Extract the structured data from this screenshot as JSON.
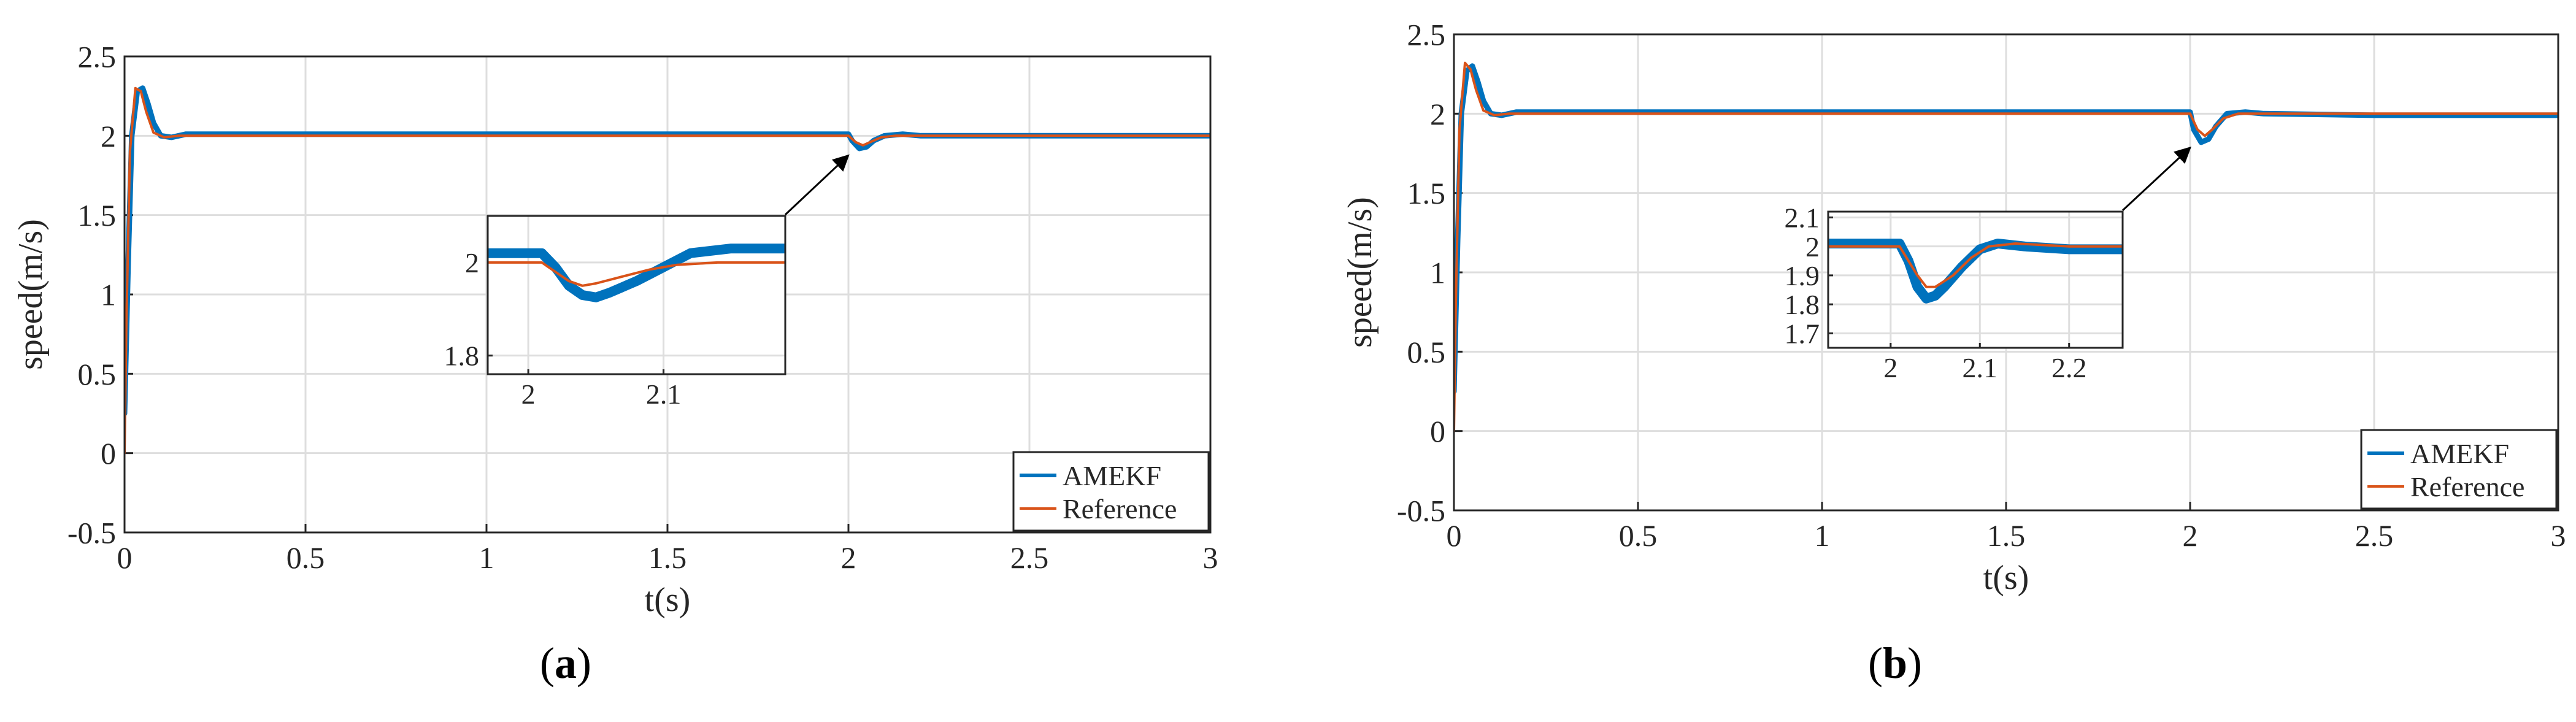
{
  "chart_data": [
    {
      "id": "a",
      "type": "line",
      "caption_letter": "a",
      "xlabel": "t(s)",
      "ylabel": "speed(m/s)",
      "xlim": [
        0,
        3
      ],
      "ylim": [
        -0.5,
        2.5
      ],
      "xticks": [
        0,
        0.5,
        1,
        1.5,
        2,
        2.5,
        3
      ],
      "xtick_labels": [
        "0",
        "0.5",
        "1",
        "1.5",
        "2",
        "2.5",
        "3"
      ],
      "yticks": [
        -0.5,
        0,
        0.5,
        1,
        1.5,
        2,
        2.5
      ],
      "ytick_labels": [
        "-0.5",
        "0",
        "0.5",
        "1",
        "1.5",
        "2",
        "2.5"
      ],
      "grid": true,
      "legend_position": "bottom-right",
      "series": [
        {
          "name": "AMEKF",
          "color": "#0072BD",
          "x": [
            0,
            0.01,
            0.02,
            0.035,
            0.05,
            0.065,
            0.08,
            0.1,
            0.13,
            0.17,
            0.22,
            0.5,
            1.0,
            1.5,
            2.0,
            2.01,
            2.03,
            2.05,
            2.07,
            2.1,
            2.15,
            2.2,
            2.5,
            3.0
          ],
          "y": [
            0.25,
            1.2,
            2.0,
            2.28,
            2.3,
            2.2,
            2.08,
            2.0,
            1.99,
            2.01,
            2.01,
            2.01,
            2.01,
            2.01,
            2.01,
            1.97,
            1.92,
            1.93,
            1.97,
            2.0,
            2.01,
            2.0,
            2.0,
            2.0
          ]
        },
        {
          "name": "Reference",
          "color": "#D95319",
          "x": [
            0,
            0.005,
            0.015,
            0.03,
            0.045,
            0.06,
            0.08,
            0.11,
            0.15,
            0.2,
            0.5,
            1.0,
            1.5,
            2.0,
            2.02,
            2.04,
            2.06,
            2.09,
            2.13,
            2.2,
            2.5,
            3.0
          ],
          "y": [
            0,
            0.8,
            1.9,
            2.3,
            2.28,
            2.15,
            2.02,
            1.99,
            2.0,
            2.0,
            2.0,
            2.0,
            2.0,
            2.0,
            1.96,
            1.94,
            1.96,
            1.99,
            2.0,
            2.0,
            2.0,
            2.0
          ]
        }
      ],
      "inset": {
        "xlim": [
          1.97,
          2.19
        ],
        "ylim": [
          1.76,
          2.1
        ],
        "xticks": [
          2,
          2.1
        ],
        "xtick_labels": [
          "2",
          "2.1"
        ],
        "yticks": [
          1.8,
          2
        ],
        "ytick_labels": [
          "1.8",
          "2"
        ],
        "target": {
          "x": 2.02,
          "y": 1.93
        },
        "series": [
          {
            "name": "AMEKF",
            "x": [
              1.97,
              2.0,
              2.01,
              2.02,
              2.03,
              2.04,
              2.05,
              2.06,
              2.08,
              2.1,
              2.12,
              2.15,
              2.19
            ],
            "y": [
              2.02,
              2.02,
              2.02,
              1.99,
              1.95,
              1.93,
              1.925,
              1.935,
              1.96,
              1.99,
              2.02,
              2.03,
              2.03
            ]
          },
          {
            "name": "Reference",
            "x": [
              1.97,
              2.0,
              2.01,
              2.02,
              2.03,
              2.04,
              2.05,
              2.07,
              2.09,
              2.11,
              2.14,
              2.19
            ],
            "y": [
              2.0,
              2.0,
              2.0,
              1.98,
              1.96,
              1.95,
              1.955,
              1.97,
              1.985,
              1.995,
              2.0,
              2.0
            ]
          }
        ]
      }
    },
    {
      "id": "b",
      "type": "line",
      "caption_letter": "b",
      "xlabel": "t(s)",
      "ylabel": "speed(m/s)",
      "xlim": [
        0,
        3
      ],
      "ylim": [
        -0.5,
        2.5
      ],
      "xticks": [
        0,
        0.5,
        1,
        1.5,
        2,
        2.5,
        3
      ],
      "xtick_labels": [
        "0",
        "0.5",
        "1",
        "1.5",
        "2",
        "2.5",
        "3"
      ],
      "yticks": [
        -0.5,
        0,
        0.5,
        1,
        1.5,
        2,
        2.5
      ],
      "ytick_labels": [
        "-0.5",
        "0",
        "0.5",
        "1",
        "1.5",
        "2",
        "2.5"
      ],
      "grid": true,
      "legend_position": "bottom-right",
      "series": [
        {
          "name": "AMEKF",
          "color": "#0072BD",
          "x": [
            0,
            0.01,
            0.02,
            0.035,
            0.05,
            0.065,
            0.08,
            0.1,
            0.13,
            0.17,
            0.22,
            0.5,
            1.0,
            1.5,
            2.0,
            2.01,
            2.03,
            2.05,
            2.07,
            2.1,
            2.15,
            2.2,
            2.5,
            3.0
          ],
          "y": [
            0.25,
            1.2,
            2.0,
            2.27,
            2.3,
            2.2,
            2.08,
            2.0,
            1.99,
            2.01,
            2.01,
            2.01,
            2.01,
            2.01,
            2.01,
            1.9,
            1.82,
            1.84,
            1.92,
            2.0,
            2.01,
            2.0,
            1.99,
            1.99
          ]
        },
        {
          "name": "Reference",
          "color": "#D95319",
          "x": [
            0,
            0.005,
            0.015,
            0.03,
            0.045,
            0.06,
            0.08,
            0.11,
            0.15,
            0.2,
            0.5,
            1.0,
            1.5,
            2.0,
            2.02,
            2.04,
            2.06,
            2.09,
            2.13,
            2.2,
            2.5,
            3.0
          ],
          "y": [
            0,
            0.8,
            1.9,
            2.32,
            2.28,
            2.15,
            2.02,
            1.99,
            2.0,
            2.0,
            2.0,
            2.0,
            2.0,
            2.0,
            1.9,
            1.86,
            1.9,
            1.97,
            2.0,
            2.0,
            2.0,
            2.0
          ]
        }
      ],
      "inset": {
        "xlim": [
          1.93,
          2.26
        ],
        "ylim": [
          1.65,
          2.12
        ],
        "xticks": [
          2,
          2.1,
          2.2
        ],
        "xtick_labels": [
          "2",
          "2.1",
          "2.2"
        ],
        "yticks": [
          1.7,
          1.8,
          1.9,
          2,
          2.1
        ],
        "ytick_labels": [
          "1.7",
          "1.8",
          "1.9",
          "2",
          "2.1"
        ],
        "target": {
          "x": 2.02,
          "y": 1.84
        },
        "series": [
          {
            "name": "AMEKF",
            "x": [
              1.93,
              2.0,
              2.01,
              2.02,
              2.03,
              2.04,
              2.05,
              2.06,
              2.08,
              2.1,
              2.12,
              2.15,
              2.2,
              2.26
            ],
            "y": [
              2.01,
              2.01,
              2.01,
              1.95,
              1.86,
              1.82,
              1.83,
              1.86,
              1.93,
              1.99,
              2.01,
              2.0,
              1.99,
              1.99
            ]
          },
          {
            "name": "Reference",
            "x": [
              1.93,
              2.0,
              2.01,
              2.02,
              2.03,
              2.04,
              2.05,
              2.07,
              2.09,
              2.11,
              2.14,
              2.2,
              2.26
            ],
            "y": [
              2.0,
              2.0,
              2.0,
              1.95,
              1.9,
              1.86,
              1.86,
              1.9,
              1.96,
              2.0,
              2.01,
              2.0,
              2.0
            ]
          }
        ]
      }
    }
  ]
}
